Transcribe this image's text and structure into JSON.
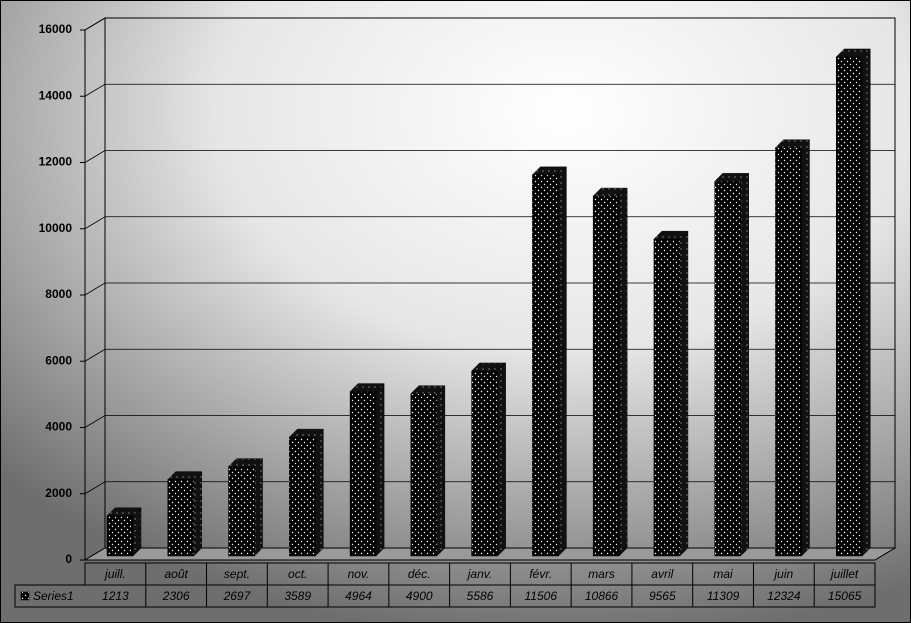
{
  "chart_data": {
    "type": "bar",
    "categories": [
      "juill.",
      "août",
      "sept.",
      "oct.",
      "nov.",
      "déc.",
      "janv.",
      "févr.",
      "mars",
      "avril",
      "mai",
      "juin",
      "juillet"
    ],
    "series": [
      {
        "name": "Series1",
        "color": "#000000",
        "values": [
          1213,
          2306,
          2697,
          3589,
          4964,
          4900,
          5586,
          11506,
          10866,
          9565,
          11309,
          12324,
          15065
        ]
      }
    ],
    "ylim": [
      0,
      16000
    ],
    "yticks": [
      0,
      2000,
      4000,
      6000,
      8000,
      10000,
      12000,
      14000,
      16000
    ],
    "grid": true
  }
}
